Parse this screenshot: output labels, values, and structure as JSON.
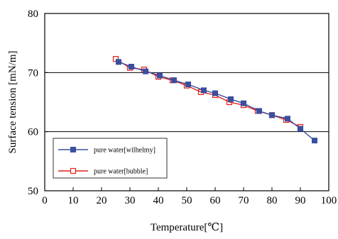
{
  "chart_data": {
    "type": "line",
    "title": "",
    "xlabel": "Temperature[℃]",
    "ylabel": "Surface tension [mN/m]",
    "xlim": [
      0,
      100
    ],
    "ylim": [
      50,
      80
    ],
    "x_ticks": [
      0,
      10,
      20,
      30,
      40,
      50,
      60,
      70,
      80,
      90,
      100
    ],
    "y_ticks": [
      50,
      60,
      70,
      80
    ],
    "x_tick_labels": [
      "0",
      "10",
      "20",
      "30",
      "40",
      "50",
      "60",
      "70",
      "80",
      "90",
      "100"
    ],
    "y_tick_labels": [
      "50",
      "60",
      "70",
      "80"
    ],
    "grid": "horizontal major lines",
    "legend_position": "lower-left",
    "series": [
      {
        "name": "pure water[wilhelmy]",
        "color": "#3a4f9f",
        "marker": "filled-square",
        "x": [
          26,
          30.5,
          35.5,
          40.5,
          45.5,
          50.5,
          56,
          60,
          65.5,
          70,
          75.5,
          80,
          85.5,
          90,
          95
        ],
        "y": [
          71.8,
          71.0,
          70.2,
          69.5,
          68.7,
          68.0,
          67.0,
          66.5,
          65.5,
          64.8,
          63.5,
          62.8,
          62.2,
          60.5,
          58.5
        ]
      },
      {
        "name": "pure water[bubble]",
        "color": "#e0201b",
        "marker": "open-square",
        "x": [
          25,
          30,
          35,
          40,
          45,
          50,
          55,
          60,
          65,
          70,
          75,
          80,
          85,
          90
        ],
        "y": [
          72.3,
          70.8,
          70.5,
          69.3,
          68.7,
          67.8,
          66.7,
          66.2,
          65.0,
          64.5,
          63.5,
          62.8,
          62.0,
          60.8
        ]
      }
    ]
  }
}
